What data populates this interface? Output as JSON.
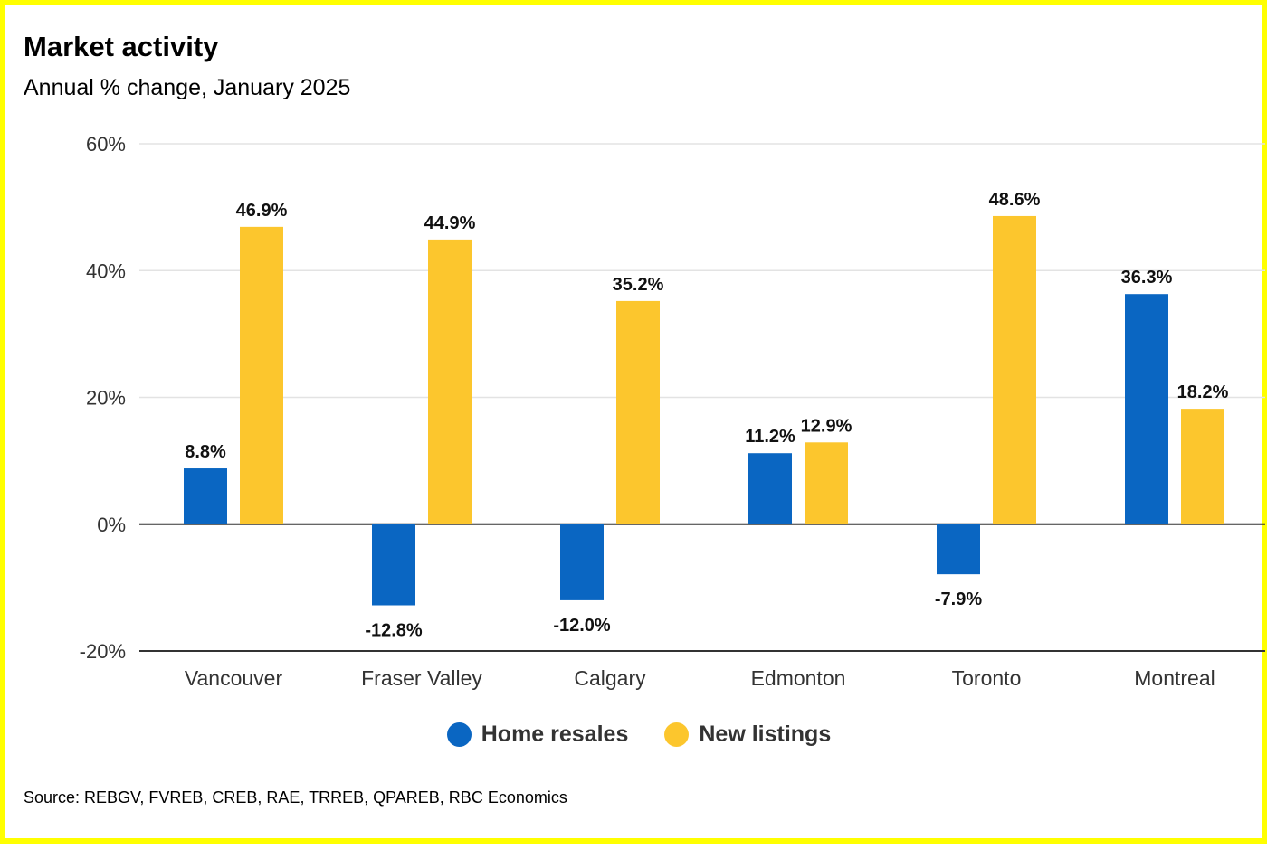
{
  "colors": {
    "resales": "#0a66c2",
    "listings": "#fcc62d",
    "border": "#ffff00",
    "gridline": "#e3e3e3",
    "axis": "#333333"
  },
  "legend": {
    "placement": "bottom-center",
    "resales_label": "Home resales",
    "listings_label": "New listings"
  },
  "source": "Source: REBGV, FVREB, CREB, RAE, TRREB, QPAREB, RBC Economics",
  "chart_data": {
    "type": "bar",
    "title": "Market activity",
    "subtitle": "Annual % change, January 2025",
    "xlabel": "",
    "ylabel": "",
    "ylim": [
      -20,
      60
    ],
    "yticks": [
      60,
      40,
      20,
      0,
      -20
    ],
    "yticklabels": [
      "60%",
      "40%",
      "20%",
      "0%",
      "-20%"
    ],
    "grid": true,
    "categories": [
      "Vancouver",
      "Fraser Valley",
      "Calgary",
      "Edmonton",
      "Toronto",
      "Montreal"
    ],
    "series": [
      {
        "name": "Home resales",
        "color": "#0a66c2",
        "values": [
          8.8,
          -12.8,
          -12.0,
          11.2,
          -7.9,
          36.3
        ],
        "labels": [
          "8.8%",
          "-12.8%",
          "-12.0%",
          "11.2%",
          "-7.9%",
          "36.3%"
        ]
      },
      {
        "name": "New listings",
        "color": "#fcc62d",
        "values": [
          46.9,
          44.9,
          35.2,
          12.9,
          48.6,
          18.2
        ],
        "labels": [
          "46.9%",
          "44.9%",
          "35.2%",
          "12.9%",
          "48.6%",
          "18.2%"
        ]
      }
    ]
  }
}
